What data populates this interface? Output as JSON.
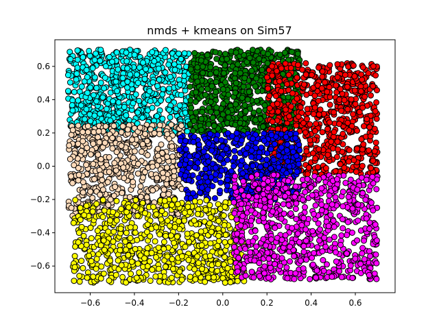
{
  "chart_data": {
    "type": "scatter",
    "title": "nmds + kmeans on Sim57",
    "xlabel": "",
    "ylabel": "",
    "xlim": [
      -0.76,
      0.78
    ],
    "ylim": [
      -0.76,
      0.76
    ],
    "xticks": [
      -0.6,
      -0.4,
      -0.2,
      0.0,
      0.2,
      0.4,
      0.6
    ],
    "xtick_labels": [
      "−0.6",
      "−0.4",
      "−0.2",
      "0.0",
      "0.2",
      "0.4",
      "0.6"
    ],
    "yticks": [
      -0.6,
      -0.4,
      -0.2,
      0.0,
      0.2,
      0.4,
      0.6
    ],
    "ytick_labels": [
      "−0.6",
      "−0.4",
      "−0.2",
      "0.0",
      "0.2",
      "0.4",
      "0.6"
    ],
    "grid": false,
    "legend": "none",
    "marker_edge_color": "#000000",
    "clusters": [
      {
        "color": "#00ffff",
        "region": {
          "x": [
            -0.7,
            -0.15
          ],
          "y": [
            0.2,
            0.7
          ]
        },
        "approx_points": 700
      },
      {
        "color": "#008000",
        "region": {
          "x": [
            -0.15,
            0.35
          ],
          "y": [
            0.2,
            0.7
          ]
        },
        "approx_points": 700
      },
      {
        "color": "#ff0000",
        "region": {
          "x": [
            0.2,
            0.7
          ],
          "y": [
            -0.05,
            0.62
          ]
        },
        "approx_points": 700
      },
      {
        "color": "#ffdab9",
        "region": {
          "x": [
            -0.7,
            -0.18
          ],
          "y": [
            -0.3,
            0.25
          ]
        },
        "approx_points": 600
      },
      {
        "color": "#0000ff",
        "region": {
          "x": [
            -0.2,
            0.35
          ],
          "y": [
            -0.2,
            0.2
          ]
        },
        "approx_points": 550
      },
      {
        "color": "#ffff00",
        "region": {
          "x": [
            -0.68,
            0.1
          ],
          "y": [
            -0.7,
            -0.2
          ]
        },
        "approx_points": 750
      },
      {
        "color": "#ff00ff",
        "region": {
          "x": [
            0.05,
            0.7
          ],
          "y": [
            -0.68,
            -0.05
          ]
        },
        "approx_points": 750
      }
    ]
  }
}
